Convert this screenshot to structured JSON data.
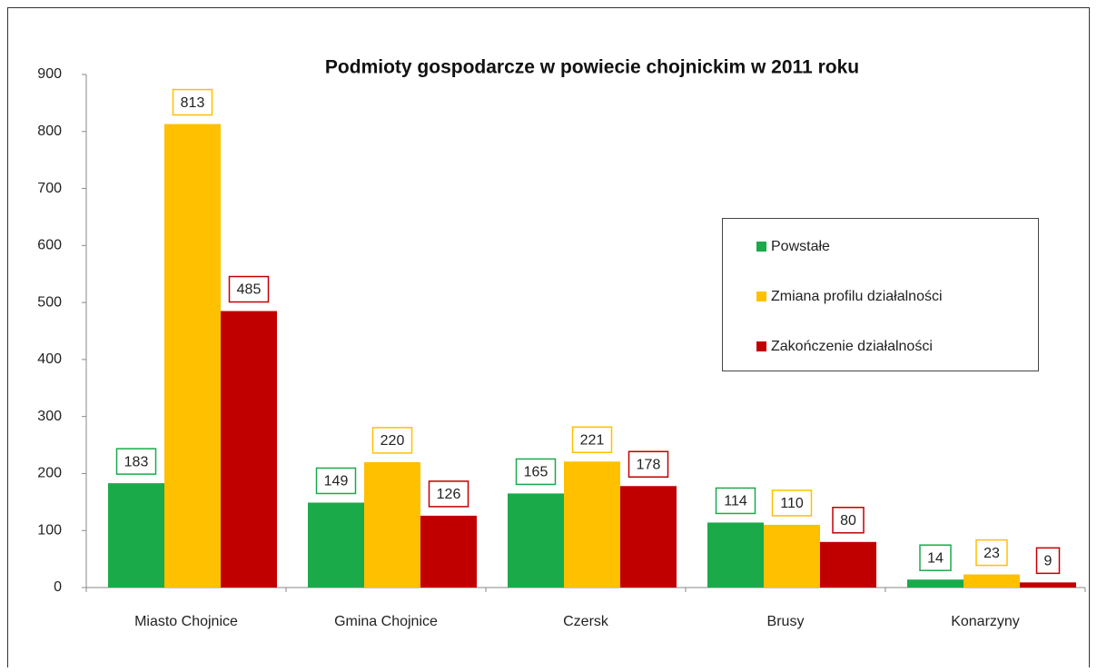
{
  "chart_data": {
    "type": "bar",
    "title": "Podmioty gospodarcze w powiecie chojnickim w 2011 roku",
    "categories": [
      "Miasto Chojnice",
      "Gmina Chojnice",
      "Czersk",
      "Brusy",
      "Konarzyny"
    ],
    "series": [
      {
        "name": "Powstałe",
        "color": "#1aaa4a",
        "values": [
          183,
          149,
          165,
          114,
          14
        ]
      },
      {
        "name": "Zmiana profilu działalności",
        "color": "#ffc000",
        "values": [
          813,
          220,
          221,
          110,
          23
        ]
      },
      {
        "name": "Zakończenie działalności",
        "color": "#c00000",
        "values": [
          485,
          126,
          178,
          80,
          9
        ]
      }
    ],
    "ylim": [
      0,
      900
    ],
    "yticks": [
      0,
      100,
      200,
      300,
      400,
      500,
      600,
      700,
      800,
      900
    ],
    "grid": false,
    "legend": "right",
    "data_labels": true
  }
}
